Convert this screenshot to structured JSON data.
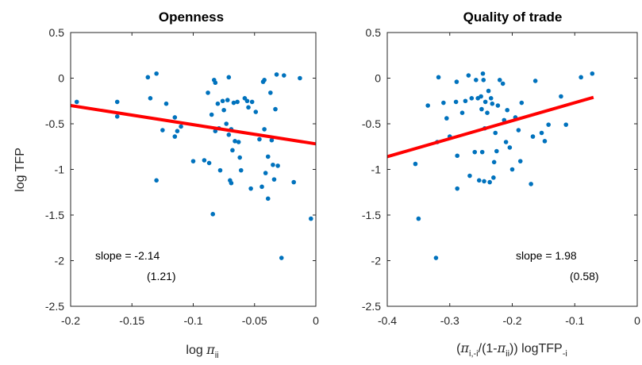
{
  "chart_data": [
    {
      "type": "scatter",
      "title": "Openness",
      "xlabel": "log π_ii",
      "ylabel": "log TFP",
      "xlim": [
        -0.2,
        0
      ],
      "ylim": [
        -2.5,
        0.5
      ],
      "xticks": [
        "-0.2",
        "-0.15",
        "-0.1",
        "-0.05",
        "0"
      ],
      "yticks": [
        "0.5",
        "0",
        "-0.5",
        "-1",
        "-1.5",
        "-2",
        "-2.5"
      ],
      "annotation": {
        "line1": "slope = -2.14",
        "line2": "(1.21)"
      },
      "point_color": "#0072BD",
      "fit_color": "#FF0000",
      "fit_line": {
        "x": [
          -0.2,
          0
        ],
        "y": [
          -0.3,
          -0.72
        ]
      },
      "points": [
        [
          -0.195,
          -0.26
        ],
        [
          -0.162,
          -0.26
        ],
        [
          -0.162,
          -0.42
        ],
        [
          -0.137,
          0.01
        ],
        [
          -0.135,
          -0.22
        ],
        [
          -0.13,
          0.05
        ],
        [
          -0.13,
          -1.12
        ],
        [
          -0.125,
          -0.57
        ],
        [
          -0.122,
          -0.28
        ],
        [
          -0.115,
          -0.43
        ],
        [
          -0.115,
          -0.64
        ],
        [
          -0.113,
          -0.58
        ],
        [
          -0.11,
          -0.53
        ],
        [
          -0.1,
          -0.91
        ],
        [
          -0.091,
          -0.9
        ],
        [
          -0.088,
          -0.16
        ],
        [
          -0.087,
          -0.93
        ],
        [
          -0.085,
          -0.4
        ],
        [
          -0.084,
          -1.49
        ],
        [
          -0.083,
          -0.02
        ],
        [
          -0.082,
          -0.05
        ],
        [
          -0.082,
          -0.58
        ],
        [
          -0.08,
          -0.28
        ],
        [
          -0.079,
          -0.55
        ],
        [
          -0.078,
          -1.01
        ],
        [
          -0.076,
          -0.25
        ],
        [
          -0.075,
          -0.35
        ],
        [
          -0.073,
          -0.5
        ],
        [
          -0.072,
          -0.24
        ],
        [
          -0.071,
          0.01
        ],
        [
          -0.071,
          -0.62
        ],
        [
          -0.07,
          -1.12
        ],
        [
          -0.069,
          -1.15
        ],
        [
          -0.069,
          -0.56
        ],
        [
          -0.068,
          -0.79
        ],
        [
          -0.067,
          -0.27
        ],
        [
          -0.066,
          -0.69
        ],
        [
          -0.064,
          -0.26
        ],
        [
          -0.063,
          -0.7
        ],
        [
          -0.062,
          -0.87
        ],
        [
          -0.061,
          -1.01
        ],
        [
          -0.058,
          -0.22
        ],
        [
          -0.056,
          -0.25
        ],
        [
          -0.055,
          -0.32
        ],
        [
          -0.053,
          -1.21
        ],
        [
          -0.052,
          -0.26
        ],
        [
          -0.049,
          -0.37
        ],
        [
          -0.046,
          -0.67
        ],
        [
          -0.044,
          -1.19
        ],
        [
          -0.043,
          -0.04
        ],
        [
          -0.042,
          -0.02
        ],
        [
          -0.042,
          -0.56
        ],
        [
          -0.041,
          -1.04
        ],
        [
          -0.039,
          -0.86
        ],
        [
          -0.039,
          -1.32
        ],
        [
          -0.037,
          -0.16
        ],
        [
          -0.036,
          -0.68
        ],
        [
          -0.035,
          -0.95
        ],
        [
          -0.034,
          -1.11
        ],
        [
          -0.033,
          -0.34
        ],
        [
          -0.032,
          0.04
        ],
        [
          -0.031,
          -0.96
        ],
        [
          -0.028,
          -1.97
        ],
        [
          -0.026,
          0.03
        ],
        [
          -0.018,
          -1.14
        ],
        [
          -0.013,
          0.0
        ],
        [
          -0.004,
          -1.54
        ]
      ]
    },
    {
      "type": "scatter",
      "title": "Quality of trade",
      "xlabel": "(π_i,-i/(1-π_ii)) logTFP_-i",
      "ylabel": "",
      "xlim": [
        -0.4,
        0
      ],
      "ylim": [
        -2.5,
        0.5
      ],
      "xticks": [
        "-0.4",
        "-0.3",
        "-0.2",
        "-0.1",
        "0"
      ],
      "yticks": [
        "0.5",
        "0",
        "-0.5",
        "-1",
        "-1.5",
        "-2",
        "-2.5"
      ],
      "annotation": {
        "line1": "slope =  1.98",
        "line2": "(0.58)"
      },
      "point_color": "#0072BD",
      "fit_color": "#FF0000",
      "fit_line": {
        "x": [
          -0.4,
          -0.07
        ],
        "y": [
          -0.86,
          -0.21
        ]
      },
      "points": [
        [
          -0.355,
          -0.94
        ],
        [
          -0.35,
          -1.54
        ],
        [
          -0.335,
          -0.3
        ],
        [
          -0.322,
          -1.97
        ],
        [
          -0.32,
          -0.7
        ],
        [
          -0.318,
          0.01
        ],
        [
          -0.31,
          -0.27
        ],
        [
          -0.305,
          -0.44
        ],
        [
          -0.3,
          -0.64
        ],
        [
          -0.29,
          -0.26
        ],
        [
          -0.289,
          -0.04
        ],
        [
          -0.288,
          -0.85
        ],
        [
          -0.288,
          -1.21
        ],
        [
          -0.28,
          -0.38
        ],
        [
          -0.275,
          -0.25
        ],
        [
          -0.27,
          0.03
        ],
        [
          -0.268,
          -1.07
        ],
        [
          -0.265,
          -0.22
        ],
        [
          -0.26,
          -0.81
        ],
        [
          -0.258,
          -0.02
        ],
        [
          -0.255,
          -0.22
        ],
        [
          -0.253,
          -1.12
        ],
        [
          -0.25,
          -0.2
        ],
        [
          -0.249,
          -0.34
        ],
        [
          -0.248,
          -0.81
        ],
        [
          -0.247,
          0.05
        ],
        [
          -0.246,
          -0.02
        ],
        [
          -0.245,
          -1.13
        ],
        [
          -0.244,
          -0.55
        ],
        [
          -0.243,
          -0.26
        ],
        [
          -0.24,
          -0.38
        ],
        [
          -0.238,
          -0.14
        ],
        [
          -0.236,
          -1.14
        ],
        [
          -0.234,
          -0.22
        ],
        [
          -0.232,
          -0.28
        ],
        [
          -0.23,
          -1.09
        ],
        [
          -0.229,
          -0.92
        ],
        [
          -0.227,
          -0.6
        ],
        [
          -0.225,
          -0.8
        ],
        [
          -0.223,
          -0.3
        ],
        [
          -0.22,
          -0.02
        ],
        [
          -0.215,
          -0.06
        ],
        [
          -0.213,
          -0.46
        ],
        [
          -0.21,
          -0.7
        ],
        [
          -0.208,
          -0.35
        ],
        [
          -0.204,
          -0.76
        ],
        [
          -0.2,
          -1.0
        ],
        [
          -0.195,
          -0.43
        ],
        [
          -0.19,
          -0.57
        ],
        [
          -0.187,
          -0.91
        ],
        [
          -0.185,
          -0.27
        ],
        [
          -0.17,
          -1.16
        ],
        [
          -0.167,
          -0.64
        ],
        [
          -0.163,
          -0.03
        ],
        [
          -0.153,
          -0.6
        ],
        [
          -0.148,
          -0.69
        ],
        [
          -0.142,
          -0.51
        ],
        [
          -0.122,
          -0.2
        ],
        [
          -0.114,
          -0.51
        ],
        [
          -0.09,
          0.01
        ],
        [
          -0.072,
          0.05
        ]
      ]
    }
  ]
}
